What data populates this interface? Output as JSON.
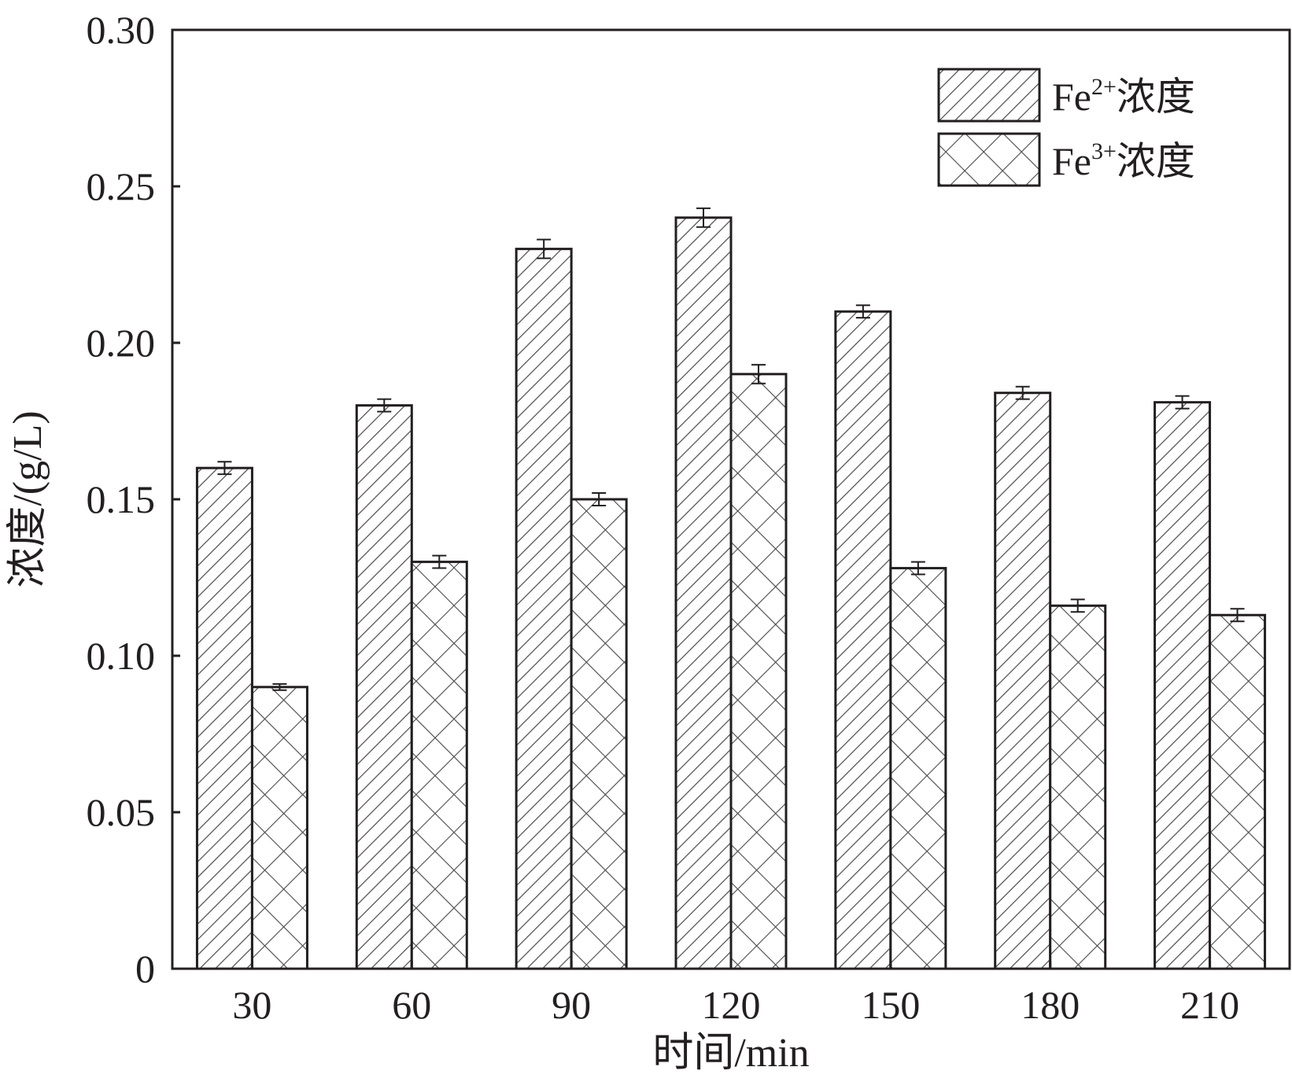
{
  "chart_data": {
    "type": "bar",
    "title": "",
    "xlabel": "时间/min",
    "ylabel": "浓度/(g/L)",
    "categories": [
      "30",
      "60",
      "90",
      "120",
      "150",
      "180",
      "210"
    ],
    "series": [
      {
        "name": "Fe2+浓度",
        "name_parts": {
          "base": "Fe",
          "sup": "2+",
          "suffix": "浓度"
        },
        "pattern": "diagonal-hatch",
        "values": [
          0.16,
          0.18,
          0.23,
          0.24,
          0.21,
          0.184,
          0.181
        ],
        "errors": [
          0.002,
          0.002,
          0.003,
          0.003,
          0.002,
          0.002,
          0.002
        ]
      },
      {
        "name": "Fe3+浓度",
        "name_parts": {
          "base": "Fe",
          "sup": "3+",
          "suffix": "浓度"
        },
        "pattern": "cross-hatch",
        "values": [
          0.09,
          0.13,
          0.15,
          0.19,
          0.128,
          0.116,
          0.113
        ],
        "errors": [
          0.001,
          0.002,
          0.002,
          0.003,
          0.002,
          0.002,
          0.002
        ]
      }
    ],
    "ylim": [
      0,
      0.3
    ],
    "yticks": [
      "0",
      "0.05",
      "0.10",
      "0.15",
      "0.20",
      "0.25",
      "0.30"
    ],
    "ytick_values": [
      0,
      0.05,
      0.1,
      0.15,
      0.2,
      0.25,
      0.3
    ],
    "grid": false,
    "legend_position": "top-right",
    "colors": {
      "stroke": "#231f20",
      "fill": "#ffffff",
      "hatch": "#4a4a4a"
    }
  }
}
